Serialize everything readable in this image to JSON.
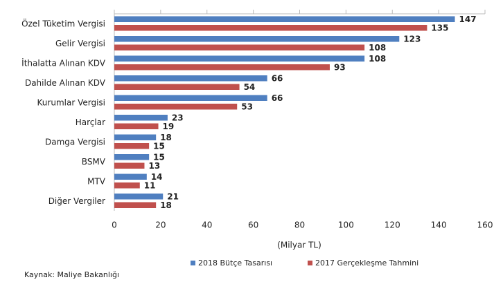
{
  "chart_data": {
    "type": "hbar",
    "categories": [
      "Özel Tüketim Vergisi",
      "Gelir Vergisi",
      "İthalatta Alınan KDV",
      "Dahilde Alınan KDV",
      "Kurumlar Vergisi",
      "Harçlar",
      "Damga Vergisi",
      "BSMV",
      "MTV",
      "Diğer Vergiler"
    ],
    "series": [
      {
        "name": "2018 Bütçe Tasarısı",
        "color": "#4f7fc0",
        "values": [
          147,
          123,
          108,
          66,
          66,
          23,
          18,
          15,
          14,
          21
        ]
      },
      {
        "name": "2017 Gerçekleşme Tahmini",
        "color": "#c0504d",
        "values": [
          135,
          108,
          93,
          54,
          53,
          19,
          15,
          13,
          11,
          18
        ]
      }
    ],
    "xlabel": "(Milyar TL)",
    "xlim": [
      0,
      160
    ],
    "xticks": [
      0,
      20,
      40,
      60,
      80,
      100,
      120,
      140,
      160
    ],
    "source": "Kaynak: Maliye Bakanlığı"
  }
}
